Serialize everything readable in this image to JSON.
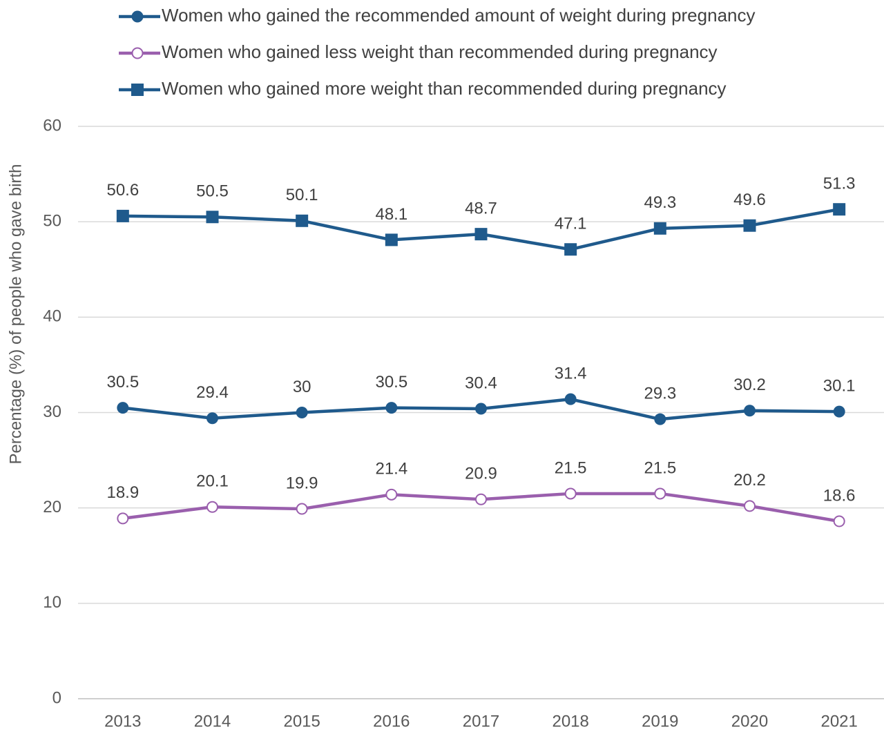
{
  "chart_data": {
    "type": "line",
    "y_label": "Percentage (%) of people who gave birth",
    "categories": [
      "2013",
      "2014",
      "2015",
      "2016",
      "2017",
      "2018",
      "2019",
      "2020",
      "2021"
    ],
    "series": [
      {
        "name": "Women who gained the recommended amount of weight during pregnancy",
        "color": "#1f5a8c",
        "marker": "circle",
        "values": [
          30.5,
          29.4,
          30,
          30.5,
          30.4,
          31.4,
          29.3,
          30.2,
          30.1
        ]
      },
      {
        "name": "Women who gained less weight than recommended during pregnancy",
        "color": "#9a5fad",
        "marker": "circle-open",
        "values": [
          18.9,
          20.1,
          19.9,
          21.4,
          20.9,
          21.5,
          21.5,
          20.2,
          18.6
        ]
      },
      {
        "name": "Women who gained more weight than recommended during pregnancy",
        "color": "#1f5a8c",
        "marker": "square",
        "values": [
          50.6,
          50.5,
          50.1,
          48.1,
          48.7,
          47.1,
          49.3,
          49.6,
          51.3
        ]
      }
    ],
    "ylim": [
      0,
      60
    ],
    "yticks": [
      0,
      10,
      20,
      30,
      40,
      50,
      60
    ],
    "grid": true,
    "legend": "top"
  }
}
